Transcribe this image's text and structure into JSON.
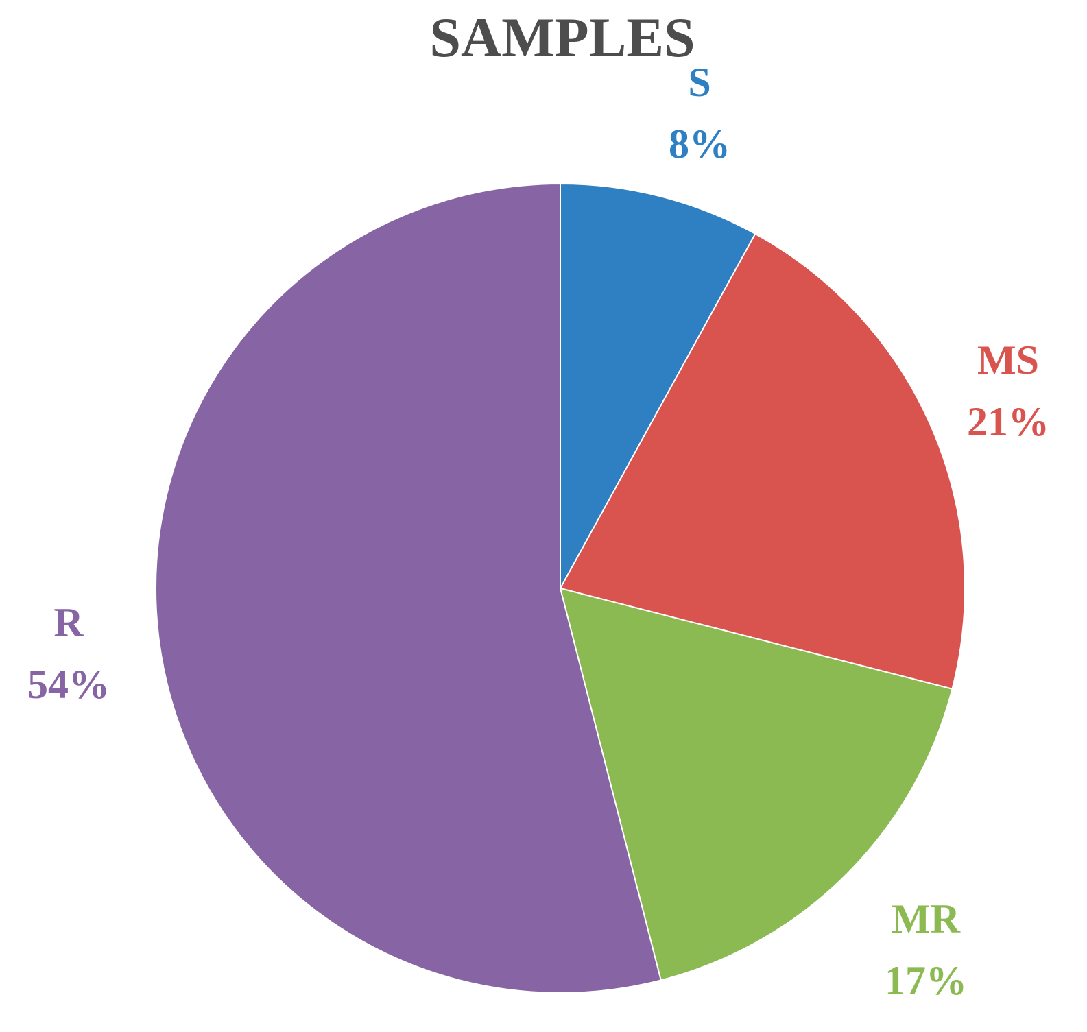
{
  "chart_data": {
    "type": "pie",
    "title": "SAMPLES",
    "slices": [
      {
        "label": "S",
        "percent_label": "8%",
        "value": 8,
        "color": "#2e80c2"
      },
      {
        "label": "MS",
        "percent_label": "21%",
        "value": 21,
        "color": "#d9534f"
      },
      {
        "label": "MR",
        "percent_label": "17%",
        "value": 17,
        "color": "#8cba52"
      },
      {
        "label": "R",
        "percent_label": "54%",
        "value": 54,
        "color": "#8764a3"
      }
    ],
    "title_color": "#4d4d4d",
    "start_angle": "12 o'clock",
    "direction": "clockwise",
    "labels": "outside"
  }
}
